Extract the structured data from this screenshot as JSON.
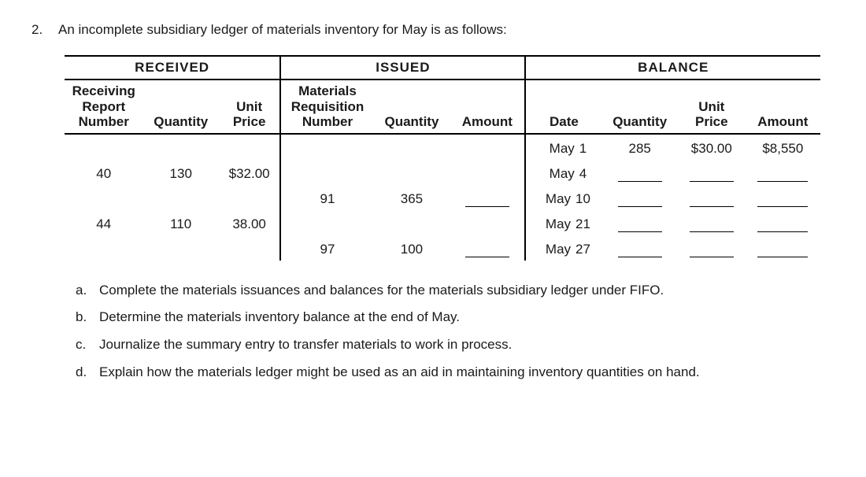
{
  "question": {
    "number": "2.",
    "text": "An incomplete subsidiary ledger of materials inventory for May is as follows:"
  },
  "ledger": {
    "sections": {
      "received": "RECEIVED",
      "issued": "ISSUED",
      "balance": "BALANCE"
    },
    "headers": {
      "recv_report": "Receiving\nReport\nNumber",
      "recv_qty": "Quantity",
      "recv_price": "Unit\nPrice",
      "mat_req": "Materials\nRequisition\nNumber",
      "iss_qty": "Quantity",
      "iss_amt": "Amount",
      "bal_date": "Date",
      "bal_qty": "Quantity",
      "bal_price": "Unit\nPrice",
      "bal_amt": "Amount"
    },
    "rows": {
      "r1": {
        "date_m": "May",
        "date_d": "1",
        "bal_qty": "285",
        "bal_price": "$30.00",
        "bal_amt": "$8,550"
      },
      "r2": {
        "recv_no": "40",
        "recv_qty": "130",
        "recv_price": "$32.00",
        "date_m": "May",
        "date_d": "4"
      },
      "r3": {
        "req_no": "91",
        "iss_qty": "365",
        "date_m": "May",
        "date_d": "10"
      },
      "r4": {
        "recv_no": "44",
        "recv_qty": "110",
        "recv_price": "38.00",
        "date_m": "May",
        "date_d": "21"
      },
      "r5": {
        "req_no": "97",
        "iss_qty": "100",
        "date_m": "May",
        "date_d": "27"
      }
    }
  },
  "subs": {
    "a": {
      "letter": "a.",
      "text": "Complete the materials issuances and balances for the materials subsidiary ledger under FIFO."
    },
    "b": {
      "letter": "b.",
      "text": "Determine the materials inventory balance at the end of May."
    },
    "c": {
      "letter": "c.",
      "text": "Journalize the summary entry to transfer materials to work in process."
    },
    "d": {
      "letter": "d.",
      "text": "Explain how the materials ledger might be used as an aid in maintaining inventory quantities on hand."
    }
  }
}
